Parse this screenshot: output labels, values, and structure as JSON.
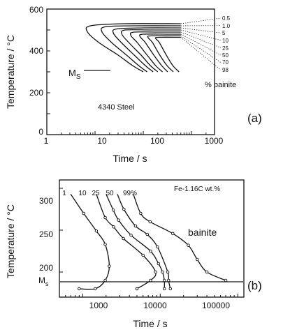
{
  "chart_data": [
    {
      "panel": "(a)",
      "type": "line",
      "xlabel": "Time / s",
      "ylabel": "Temperature / °C",
      "x_scale": "log",
      "xlim": [
        1,
        3000
      ],
      "ylim": [
        0,
        600
      ],
      "x_ticks": [
        "1",
        "10",
        "100",
        "1000"
      ],
      "y_ticks": [
        "0",
        "200",
        "400",
        "600"
      ],
      "material_label": "4340  Steel",
      "ms_label": {
        "main": "M",
        "sub": "S"
      },
      "ms_temperature": 300,
      "legend_unit": "% bainite",
      "series": [
        {
          "name": "0.5",
          "points": [
            [
              100,
              300
            ],
            [
              60,
              330
            ],
            [
              30,
              380
            ],
            [
              12,
              440
            ],
            [
              7,
              490
            ],
            [
              8,
              520
            ],
            [
              40,
              530
            ],
            [
              600,
              530
            ]
          ]
        },
        {
          "name": "1.0",
          "points": [
            [
              120,
              300
            ],
            [
              80,
              330
            ],
            [
              45,
              380
            ],
            [
              22,
              440
            ],
            [
              14,
              490
            ],
            [
              16,
              515
            ],
            [
              60,
              520
            ],
            [
              600,
              520
            ]
          ]
        },
        {
          "name": "5",
          "points": [
            [
              160,
              300
            ],
            [
              110,
              330
            ],
            [
              65,
              380
            ],
            [
              35,
              440
            ],
            [
              24,
              485
            ],
            [
              28,
              505
            ],
            [
              100,
              510
            ],
            [
              600,
              510
            ]
          ]
        },
        {
          "name": "10",
          "points": [
            [
              200,
              300
            ],
            [
              140,
              330
            ],
            [
              90,
              380
            ],
            [
              50,
              440
            ],
            [
              36,
              480
            ],
            [
              42,
              500
            ],
            [
              150,
              500
            ],
            [
              600,
              500
            ]
          ]
        },
        {
          "name": "25",
          "points": [
            [
              250,
              300
            ],
            [
              180,
              330
            ],
            [
              120,
              380
            ],
            [
              75,
              440
            ],
            [
              55,
              475
            ],
            [
              65,
              490
            ],
            [
              220,
              490
            ],
            [
              600,
              490
            ]
          ]
        },
        {
          "name": "50",
          "points": [
            [
              320,
              300
            ],
            [
              240,
              330
            ],
            [
              165,
              380
            ],
            [
              110,
              440
            ],
            [
              85,
              470
            ],
            [
              100,
              480
            ],
            [
              320,
              480
            ],
            [
              600,
              480
            ]
          ]
        },
        {
          "name": "70",
          "points": [
            [
              420,
              300
            ],
            [
              310,
              330
            ],
            [
              220,
              380
            ],
            [
              155,
              440
            ],
            [
              125,
              465
            ],
            [
              145,
              472
            ],
            [
              450,
              472
            ],
            [
              600,
              472
            ]
          ]
        },
        {
          "name": "98",
          "points": [
            [
              550,
              300
            ],
            [
              410,
              330
            ],
            [
              300,
              380
            ],
            [
              215,
              440
            ],
            [
              180,
              460
            ],
            [
              210,
              465
            ],
            [
              600,
              465
            ]
          ]
        }
      ]
    },
    {
      "panel": "(b)",
      "type": "line",
      "xlabel": "Time / s",
      "ylabel": "Temperature / °C",
      "x_scale": "log",
      "xlim": [
        500,
        120000
      ],
      "ylim": [
        170,
        310
      ],
      "x_ticks": [
        "1000",
        "10000",
        "100000"
      ],
      "y_ticks": [
        "200",
        "250",
        "300"
      ],
      "ms_label": {
        "main": "M",
        "sub": "s"
      },
      "ms_temperature": 180,
      "composition_label": "Fe-1.16C wt.%",
      "region_label": "bainite",
      "series": [
        {
          "name": "1",
          "points": [
            [
              700,
              293
            ],
            [
              1030,
              270
            ],
            [
              1500,
              249
            ],
            [
              1950,
              233
            ],
            [
              2200,
              207
            ],
            [
              1950,
              190
            ],
            [
              1450,
              180
            ],
            [
              900,
              180
            ]
          ]
        },
        {
          "name": "10",
          "points": [
            [
              1500,
              293
            ],
            [
              1950,
              265
            ],
            [
              2500,
              254
            ],
            [
              3350,
              240
            ],
            [
              6000,
              220
            ],
            [
              8700,
              200
            ],
            [
              7500,
              190
            ],
            [
              5000,
              180
            ]
          ]
        },
        {
          "name": "25",
          "points": [
            [
              2000,
              293
            ],
            [
              2480,
              274
            ],
            [
              2900,
              262
            ],
            [
              4200,
              244
            ],
            [
              7500,
              225
            ],
            [
              9500,
              210
            ],
            [
              10700,
              200
            ],
            [
              11300,
              190
            ],
            [
              11300,
              180
            ]
          ]
        },
        {
          "name": "50",
          "points": [
            [
              2800,
              293
            ],
            [
              3400,
              275
            ],
            [
              4800,
              255
            ],
            [
              6800,
              245
            ],
            [
              9200,
              230
            ],
            [
              12500,
              200
            ],
            [
              12800,
              190
            ],
            [
              13500,
              180
            ]
          ]
        },
        {
          "name": "99%",
          "points": [
            [
              4500,
              293
            ],
            [
              5600,
              270
            ],
            [
              7400,
              260
            ],
            [
              14500,
              246
            ],
            [
              23000,
              232
            ],
            [
              30000,
              215
            ],
            [
              40000,
              200
            ],
            [
              70000,
              190
            ]
          ]
        }
      ]
    }
  ],
  "panels": {
    "a": {
      "label": "(a)",
      "xlabel": "Time  /  s",
      "ylabel": "Temperature / °C",
      "x_ticks": [
        "1",
        "10",
        "100",
        "1000"
      ],
      "y_ticks": [
        "0",
        "200",
        "400",
        "600"
      ],
      "material": "4340  Steel",
      "ms_main": "M",
      "ms_sub": "S",
      "legend_unit": "% bainite",
      "legend_values": [
        "0.5",
        "1.0",
        "5",
        "10",
        "25",
        "50",
        "70",
        "98"
      ]
    },
    "b": {
      "label": "(b)",
      "xlabel": "Time  /  s",
      "ylabel": "Temperature / °C",
      "x_ticks": [
        "1000",
        "10000",
        "100000"
      ],
      "y_ticks": [
        "200",
        "250",
        "300"
      ],
      "composition": "Fe-1.16C wt.%",
      "region": "bainite",
      "ms_main": "M",
      "ms_sub": "s",
      "curve_labels": [
        "1",
        "10",
        "25",
        "50",
        "99%"
      ]
    }
  }
}
